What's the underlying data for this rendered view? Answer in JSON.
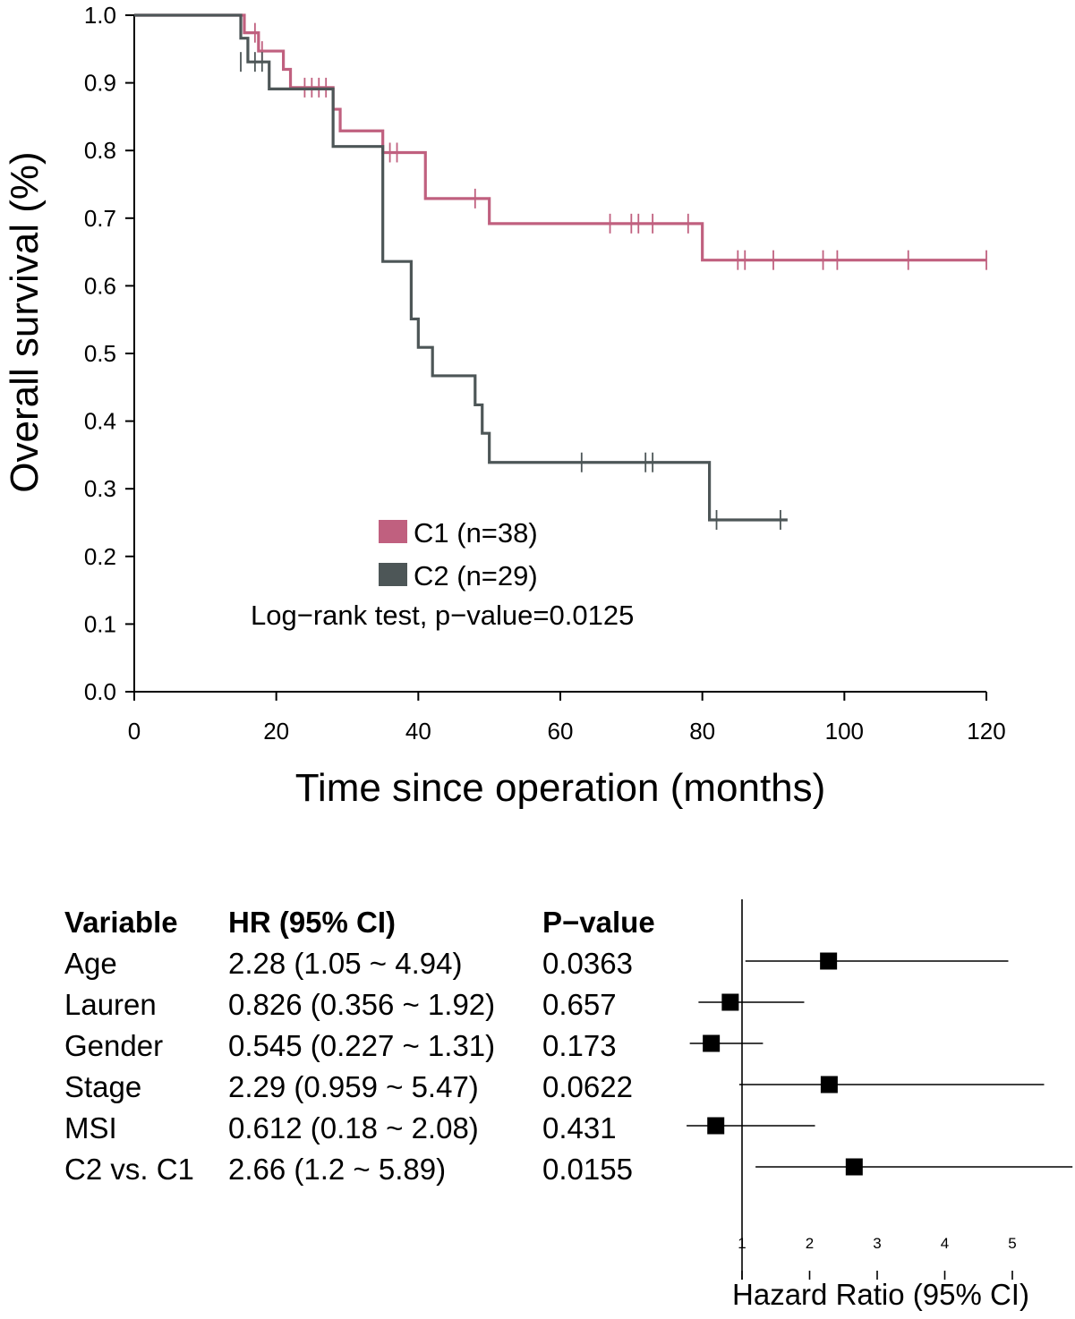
{
  "chart_data": [
    {
      "type": "line",
      "subtype": "kaplan-meier",
      "xlabel": "Time since operation (months)",
      "ylabel": "Overall survival (%)",
      "xlim": [
        0,
        120
      ],
      "ylim": [
        0,
        1
      ],
      "x_ticks": [
        "0",
        "20",
        "40",
        "60",
        "80",
        "100",
        "120"
      ],
      "y_ticks": [
        "0.0",
        "0.1",
        "0.2",
        "0.3",
        "0.4",
        "0.5",
        "0.6",
        "0.7",
        "0.8",
        "0.9",
        "1.0"
      ],
      "annotation": "Log−rank test, p−value=0.0125",
      "legend_position": "center",
      "series": [
        {
          "name": "C1 (n=38)",
          "color": "#c0607f",
          "steps": [
            [
              0,
              1.0
            ],
            [
              15.5,
              0.974
            ],
            [
              17.5,
              0.947
            ],
            [
              21,
              0.92
            ],
            [
              22,
              0.893
            ],
            [
              28,
              0.861
            ],
            [
              29,
              0.829
            ],
            [
              35,
              0.797
            ],
            [
              41,
              0.729
            ],
            [
              50,
              0.692
            ],
            [
              80,
              0.638
            ],
            [
              120,
              0.638
            ]
          ],
          "censored": [
            [
              17,
              0.974
            ],
            [
              18,
              0.947
            ],
            [
              24,
              0.893
            ],
            [
              25,
              0.893
            ],
            [
              26,
              0.893
            ],
            [
              27,
              0.893
            ],
            [
              36,
              0.797
            ],
            [
              37,
              0.797
            ],
            [
              48,
              0.729
            ],
            [
              67,
              0.692
            ],
            [
              70,
              0.692
            ],
            [
              71,
              0.692
            ],
            [
              73,
              0.692
            ],
            [
              78,
              0.692
            ],
            [
              85,
              0.638
            ],
            [
              86,
              0.638
            ],
            [
              90,
              0.638
            ],
            [
              97,
              0.638
            ],
            [
              99,
              0.638
            ],
            [
              109,
              0.638
            ],
            [
              120,
              0.638
            ]
          ]
        },
        {
          "name": "C2 (n=29)",
          "color": "#4d5657",
          "steps": [
            [
              0,
              1.0
            ],
            [
              15,
              0.966
            ],
            [
              16,
              0.931
            ],
            [
              19,
              0.891
            ],
            [
              28,
              0.806
            ],
            [
              35,
              0.636
            ],
            [
              39,
              0.551
            ],
            [
              40,
              0.509
            ],
            [
              42,
              0.467
            ],
            [
              48,
              0.424
            ],
            [
              49,
              0.382
            ],
            [
              50,
              0.339
            ],
            [
              81,
              0.254
            ],
            [
              92,
              0.254
            ]
          ],
          "censored": [
            [
              15,
              0.931
            ],
            [
              17,
              0.931
            ],
            [
              18,
              0.931
            ],
            [
              63,
              0.339
            ],
            [
              72,
              0.339
            ],
            [
              73,
              0.339
            ],
            [
              82,
              0.254
            ],
            [
              91,
              0.254
            ]
          ]
        }
      ]
    },
    {
      "type": "forest",
      "xlabel": "Hazard Ratio (95% CI)",
      "x_ticks": [
        "1",
        "2",
        "3",
        "4",
        "5"
      ],
      "headers": [
        "Variable",
        "HR (95% CI)",
        "P−value"
      ],
      "rows": [
        {
          "variable": "Age",
          "hr_text": "2.28 (1.05 ~ 4.94)",
          "p": "0.0363",
          "hr": 2.28,
          "lo": 1.05,
          "hi": 4.94
        },
        {
          "variable": "Lauren",
          "hr_text": "0.826 (0.356 ~ 1.92)",
          "p": "0.657",
          "hr": 0.826,
          "lo": 0.356,
          "hi": 1.92
        },
        {
          "variable": "Gender",
          "hr_text": "0.545 (0.227 ~ 1.31)",
          "p": "0.173",
          "hr": 0.545,
          "lo": 0.227,
          "hi": 1.31
        },
        {
          "variable": "Stage",
          "hr_text": "2.29 (0.959 ~ 5.47)",
          "p": "0.0622",
          "hr": 2.29,
          "lo": 0.959,
          "hi": 5.47
        },
        {
          "variable": "MSI",
          "hr_text": "0.612 (0.18 ~ 2.08)",
          "p": "0.431",
          "hr": 0.612,
          "lo": 0.18,
          "hi": 2.08
        },
        {
          "variable": "C2 vs. C1",
          "hr_text": "2.66 (1.2 ~ 5.89)",
          "p": "0.0155",
          "hr": 2.66,
          "lo": 1.2,
          "hi": 5.89
        }
      ]
    }
  ]
}
